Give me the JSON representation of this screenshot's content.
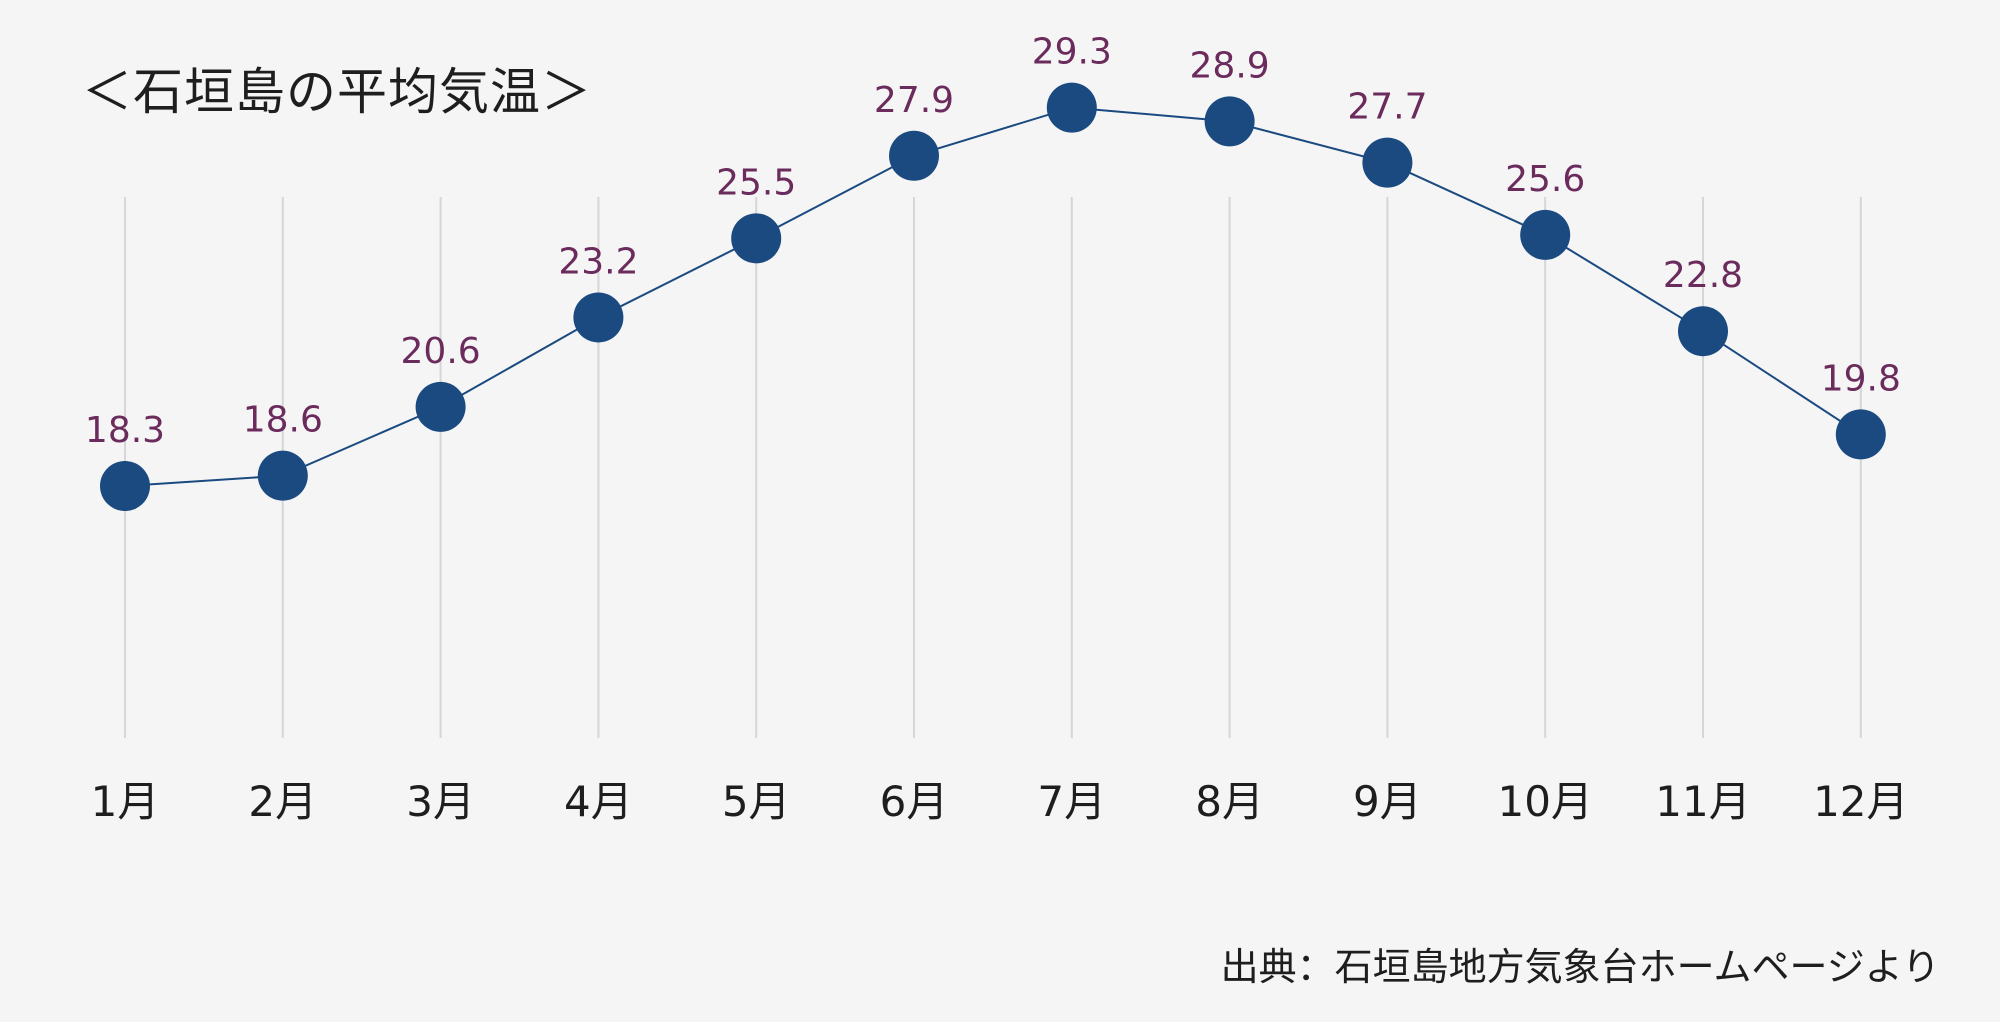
{
  "chart_data": {
    "type": "line",
    "title": "＜石垣島の平均気温＞",
    "categories": [
      "1月",
      "2月",
      "3月",
      "4月",
      "5月",
      "6月",
      "7月",
      "8月",
      "9月",
      "10月",
      "11月",
      "12月"
    ],
    "series": [
      {
        "values": [
          18.3,
          18.6,
          20.6,
          23.2,
          25.5,
          27.9,
          29.3,
          28.9,
          27.7,
          25.6,
          22.8,
          19.8
        ]
      }
    ],
    "data_labels": [
      "18.3",
      "18.6",
      "20.6",
      "23.2",
      "25.5",
      "27.9",
      "29.3",
      "28.9",
      "27.7",
      "25.6",
      "22.8",
      "19.8"
    ],
    "grid": "vertical",
    "legend": "none",
    "source": "出典：石垣島地方気象台ホームページより",
    "colors": {
      "background": "#f5f5f5",
      "marker": "#1a4a80",
      "line": "#1a4a80",
      "label": "#6b2b5c",
      "grid": "#d6d6d6",
      "text": "#1e1e1e"
    }
  }
}
